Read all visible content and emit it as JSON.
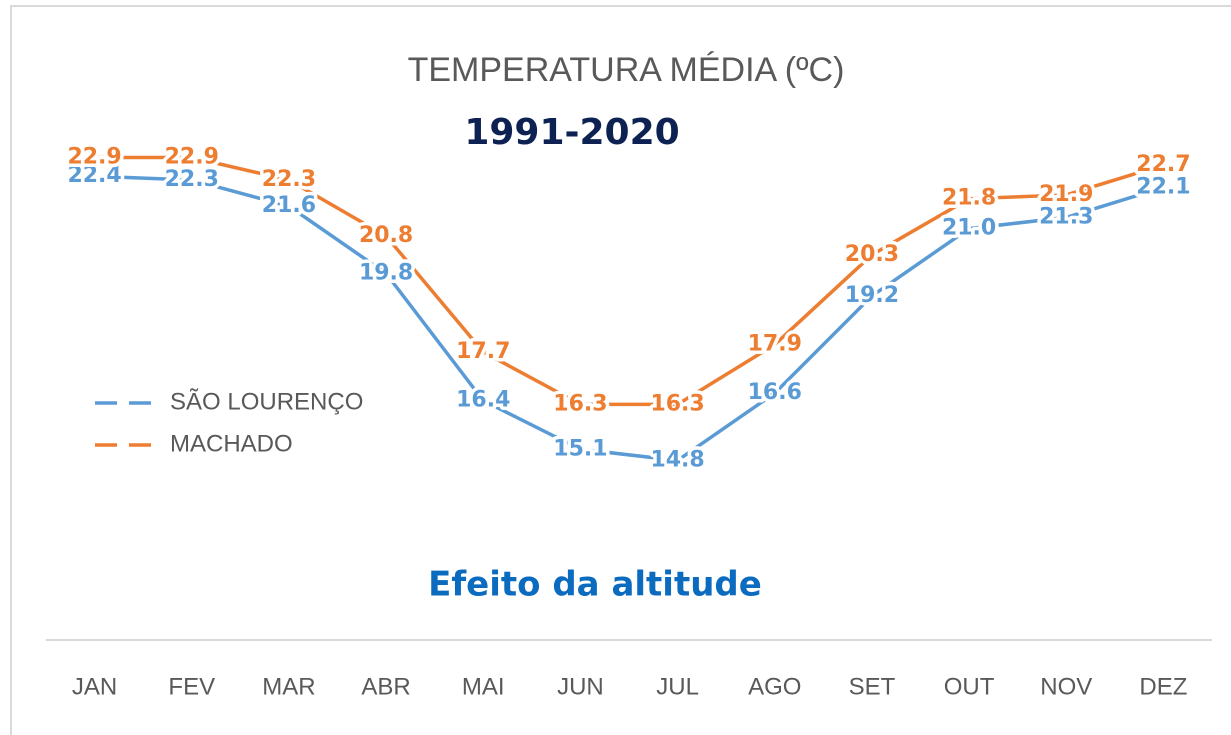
{
  "chart_data": {
    "type": "line",
    "title": "TEMPERATURA MÉDIA (ºC)",
    "subtitle": "1991-2020",
    "annotation": "Efeito da altitude",
    "categories": [
      "JAN",
      "FEV",
      "MAR",
      "ABR",
      "MAI",
      "JUN",
      "JUL",
      "AGO",
      "SET",
      "OUT",
      "NOV",
      "DEZ"
    ],
    "series": [
      {
        "name": "SÃO LOURENÇO",
        "color": "#5b9bd5",
        "values": [
          22.4,
          22.3,
          21.6,
          19.8,
          16.4,
          15.1,
          14.8,
          16.6,
          19.2,
          21.0,
          21.3,
          22.1
        ],
        "value_labels": [
          "22.4",
          "22.3",
          "21.6",
          "19.8",
          "16.4",
          "15.1",
          "14.8",
          "16.6",
          "19.2",
          "21.0",
          "21.3",
          "22.1"
        ]
      },
      {
        "name": "MACHADO",
        "color": "#ed7d31",
        "values": [
          22.9,
          22.9,
          22.3,
          20.8,
          17.7,
          16.3,
          16.3,
          17.9,
          20.3,
          21.8,
          21.9,
          22.7
        ],
        "value_labels": [
          "22.9",
          "22.9",
          "22.3",
          "20.8",
          "17.7",
          "16.3",
          "16.3",
          "17.9",
          "20.3",
          "21.8",
          "21.9",
          "22.7"
        ]
      }
    ],
    "ylim": [
      10,
      24
    ],
    "legend": "left"
  }
}
